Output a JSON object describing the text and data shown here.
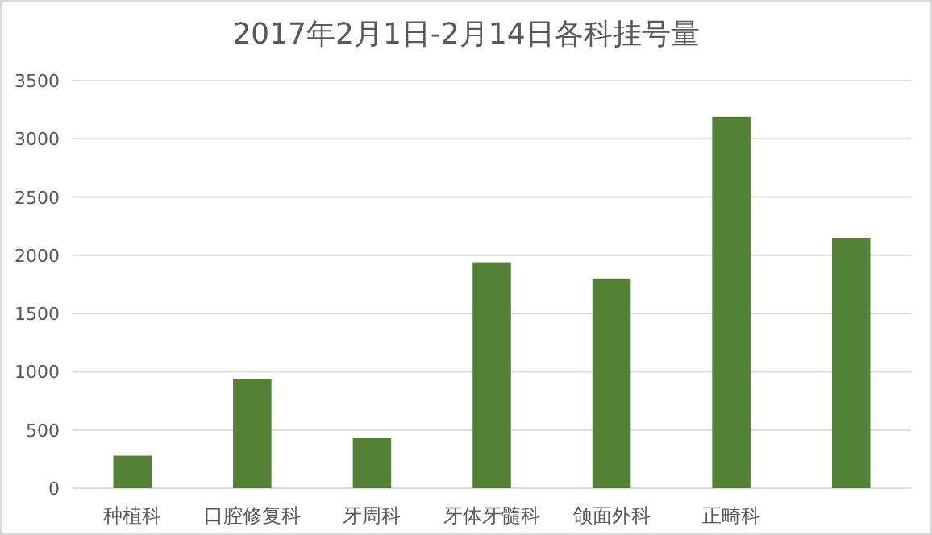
{
  "chart_data": {
    "type": "bar",
    "title": "2017年2月1日-2月14日各科挂号量",
    "categories": [
      "种植科",
      "口腔修复科",
      "牙周科",
      "牙体牙髓科",
      "颌面外科",
      "正畸科",
      null
    ],
    "values": [
      280,
      940,
      430,
      1940,
      1800,
      3190,
      2150
    ],
    "color": "#538135",
    "ylim": [
      0,
      3500
    ],
    "yticks": [
      0,
      500,
      1000,
      1500,
      2000,
      2500,
      3000,
      3500
    ],
    "grid": "y"
  }
}
